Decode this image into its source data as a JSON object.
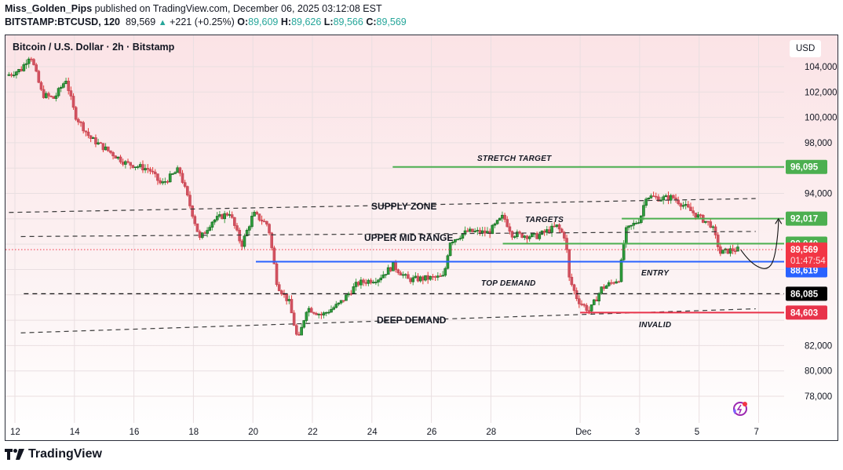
{
  "header": {
    "author": "Miss_Golden_Pips",
    "published_text": "published on TradingView.com, December 06, 2025 03:12:08 EST",
    "symbol": "BITSTAMP:BTCUSD, 120",
    "last": "89,569",
    "change": "+221 (+0.25%)",
    "o_label": "O:",
    "o": "89,609",
    "h_label": "H:",
    "h": "89,626",
    "l_label": "L:",
    "l": "89,566",
    "c_label": "C:",
    "c": "89,569"
  },
  "plot_title": "Bitcoin / U.S. Dollar · 2h · Bitstamp",
  "currency_badge": "USD",
  "footer": {
    "brand": "TradingView"
  },
  "colors": {
    "up": "#1e8a2e",
    "down": "#d9505e",
    "green_level": "#4caf50",
    "red_level": "#e8334a",
    "blue_level": "#2962ff",
    "black_label": "#000000",
    "current_price": "#f23645"
  },
  "chart_data": {
    "type": "candlestick",
    "title": "Bitcoin / U.S. Dollar · 2h · Bitstamp",
    "symbol": "BITSTAMP:BTCUSD",
    "interval": "2h",
    "currency": "USD",
    "y_ticks": [
      104000,
      102000,
      100000,
      98000,
      96000,
      94000,
      92000,
      90000,
      86000,
      84000,
      82000,
      80000,
      78000
    ],
    "y_tick_labels": [
      "104,000",
      "102,000",
      "100,000",
      "98,000",
      "94,000",
      "82,000",
      "80,000",
      "78,000"
    ],
    "x_tick_labels": [
      "12",
      "14",
      "16",
      "18",
      "20",
      "22",
      "24",
      "26",
      "28",
      "Dec",
      "3",
      "5",
      "7"
    ],
    "ylim": [
      76500,
      105800
    ],
    "grid": true,
    "price_path": [
      {
        "d": 11.8,
        "p": 103300
      },
      {
        "d": 12.3,
        "p": 103800
      },
      {
        "d": 12.6,
        "p": 105000
      },
      {
        "d": 13.0,
        "p": 101800
      },
      {
        "d": 13.4,
        "p": 101500
      },
      {
        "d": 13.8,
        "p": 103000
      },
      {
        "d": 14.1,
        "p": 100200
      },
      {
        "d": 14.6,
        "p": 98400
      },
      {
        "d": 15.2,
        "p": 97400
      },
      {
        "d": 15.8,
        "p": 96400
      },
      {
        "d": 16.6,
        "p": 95900
      },
      {
        "d": 17.0,
        "p": 94700
      },
      {
        "d": 17.6,
        "p": 95900
      },
      {
        "d": 18.0,
        "p": 92800
      },
      {
        "d": 18.3,
        "p": 90400
      },
      {
        "d": 18.7,
        "p": 91800
      },
      {
        "d": 19.3,
        "p": 92500
      },
      {
        "d": 19.7,
        "p": 89900
      },
      {
        "d": 20.1,
        "p": 92400
      },
      {
        "d": 20.6,
        "p": 91500
      },
      {
        "d": 20.9,
        "p": 86800
      },
      {
        "d": 21.3,
        "p": 85400
      },
      {
        "d": 21.6,
        "p": 82300
      },
      {
        "d": 21.9,
        "p": 85000
      },
      {
        "d": 22.4,
        "p": 84400
      },
      {
        "d": 23.0,
        "p": 85300
      },
      {
        "d": 23.6,
        "p": 86900
      },
      {
        "d": 24.3,
        "p": 87300
      },
      {
        "d": 24.8,
        "p": 88300
      },
      {
        "d": 25.3,
        "p": 87200
      },
      {
        "d": 25.9,
        "p": 87300
      },
      {
        "d": 26.5,
        "p": 87400
      },
      {
        "d": 26.7,
        "p": 90200
      },
      {
        "d": 27.3,
        "p": 91000
      },
      {
        "d": 28.0,
        "p": 90900
      },
      {
        "d": 28.5,
        "p": 92200
      },
      {
        "d": 28.8,
        "p": 90800
      },
      {
        "d": 29.6,
        "p": 90600
      },
      {
        "d": 30.3,
        "p": 91400
      },
      {
        "d": 30.6,
        "p": 90500
      },
      {
        "d": 30.7,
        "p": 87400
      },
      {
        "d": 31.0,
        "p": 85600
      },
      {
        "d": 31.4,
        "p": 84700
      },
      {
        "d": 31.8,
        "p": 86500
      },
      {
        "d": 32.4,
        "p": 87300
      },
      {
        "d": 32.6,
        "p": 91000
      },
      {
        "d": 33.1,
        "p": 92000
      },
      {
        "d": 33.3,
        "p": 93800
      },
      {
        "d": 33.8,
        "p": 93600
      },
      {
        "d": 34.2,
        "p": 93700
      },
      {
        "d": 34.7,
        "p": 92800
      },
      {
        "d": 35.1,
        "p": 92100
      },
      {
        "d": 35.5,
        "p": 91500
      },
      {
        "d": 35.8,
        "p": 89300
      },
      {
        "d": 36.1,
        "p": 89500
      },
      {
        "d": 36.3,
        "p": 89569
      }
    ],
    "horizontal_levels": [
      {
        "name": "STRETCH TARGET",
        "price": 96095,
        "label": "96,095",
        "color": "#4caf50",
        "style": "solid"
      },
      {
        "name": "TARGETS",
        "price": 92017,
        "label": "92,017",
        "color": "#4caf50",
        "style": "solid"
      },
      {
        "name": "TARGETS (lower)",
        "price": 90040,
        "label": "90,040",
        "color": "#4caf50",
        "style": "solid"
      },
      {
        "name": "ENTRY",
        "price": 88619,
        "label": "88,619",
        "color": "#2962ff",
        "style": "solid"
      },
      {
        "name": "TOP DEMAND",
        "price": 86085,
        "label": "86,085",
        "color": "#000000",
        "style": "dashed"
      },
      {
        "name": "INVALID",
        "price": 84603,
        "label": "84,603",
        "color": "#e8334a",
        "style": "solid"
      }
    ],
    "trendlines": [
      {
        "name": "SUPPLY ZONE",
        "from": {
          "d": 11.8,
          "p": 92500
        },
        "to": {
          "d": 36.9,
          "p": 93600
        },
        "style": "dashed"
      },
      {
        "name": "UPPER MID RANGE",
        "from": {
          "d": 12.2,
          "p": 90600
        },
        "to": {
          "d": 36.9,
          "p": 91000
        },
        "style": "dashed"
      },
      {
        "name": "DEEP DEMAND",
        "from": {
          "d": 12.2,
          "p": 83000
        },
        "to": {
          "d": 36.9,
          "p": 84900
        },
        "style": "dashed"
      }
    ],
    "current_price": {
      "value": 89569,
      "label": "89,569",
      "countdown": "01:47:54"
    },
    "annotations": [
      {
        "text": "STRETCH TARGET"
      },
      {
        "text": "SUPPLY ZONE"
      },
      {
        "text": "TARGETS"
      },
      {
        "text": "UPPER MID RANGE"
      },
      {
        "text": "ENTRY"
      },
      {
        "text": "TOP DEMAND"
      },
      {
        "text": "DEEP DEMAND"
      },
      {
        "text": "INVALID"
      }
    ],
    "projection": "curved arrow dipping toward ENTRY then rising to TARGETS (92,017)"
  }
}
